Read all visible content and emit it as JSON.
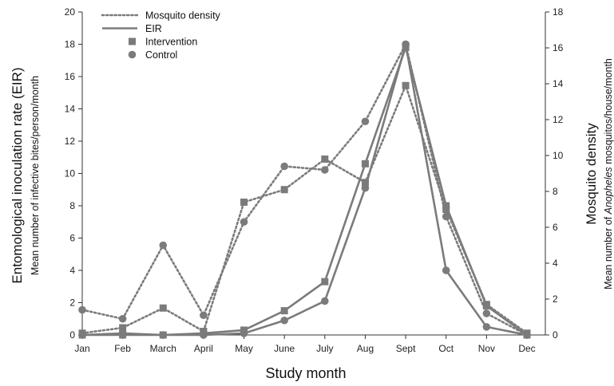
{
  "chart_data": {
    "type": "line",
    "categories": [
      "Jan",
      "Feb",
      "March",
      "April",
      "May",
      "June",
      "July",
      "Aug",
      "Sept",
      "Oct",
      "Nov",
      "Dec"
    ],
    "xlabel": "Study month",
    "y_left": {
      "title": "Entomological inoculation rate (EIR)",
      "subtitle": "Mean number of infective bites/person/month",
      "range": [
        0,
        20
      ],
      "ticks": [
        0,
        2,
        4,
        6,
        8,
        10,
        12,
        14,
        16,
        18,
        20
      ]
    },
    "y_right": {
      "title": "Mosquito density",
      "subtitle_parts": [
        "Mean number of ",
        "Anopheles",
        " mosquitos/house/month"
      ],
      "range": [
        0,
        18
      ],
      "ticks": [
        0,
        2,
        4,
        6,
        8,
        10,
        12,
        14,
        16,
        18
      ]
    },
    "legend": {
      "placement": "top-left",
      "items": [
        {
          "label": "Mosquito density",
          "kind": "dotted-line"
        },
        {
          "label": "EIR",
          "kind": "solid-line"
        },
        {
          "label": "Intervention",
          "kind": "square"
        },
        {
          "label": "Control",
          "kind": "circle"
        }
      ]
    },
    "series": [
      {
        "name": "Mosquito density",
        "group": "Intervention",
        "axis": "right",
        "style": "dotted",
        "marker": "square",
        "values": [
          0.1,
          0.4,
          1.5,
          0.2,
          7.4,
          8.1,
          9.8,
          8.5,
          13.9,
          7.0,
          1.7,
          0.1
        ]
      },
      {
        "name": "Mosquito density",
        "group": "Control",
        "axis": "right",
        "style": "dotted",
        "marker": "circle",
        "values": [
          1.4,
          0.9,
          5.0,
          1.1,
          6.3,
          9.4,
          9.2,
          11.9,
          16.2,
          6.6,
          1.2,
          0.0
        ]
      },
      {
        "name": "EIR",
        "group": "Intervention",
        "axis": "left",
        "style": "solid",
        "marker": "square",
        "values": [
          0.0,
          0.0,
          0.0,
          0.1,
          0.3,
          1.5,
          3.3,
          10.6,
          17.8,
          8.0,
          1.8,
          0.0
        ]
      },
      {
        "name": "EIR",
        "group": "Control",
        "axis": "left",
        "style": "solid",
        "marker": "circle",
        "values": [
          0.0,
          0.1,
          0.0,
          0.0,
          0.1,
          0.9,
          2.1,
          9.1,
          18.0,
          4.0,
          0.5,
          0.0
        ]
      }
    ],
    "colors": {
      "series": "#7b7b7b",
      "axis": "#333333",
      "text": "#111111"
    }
  }
}
